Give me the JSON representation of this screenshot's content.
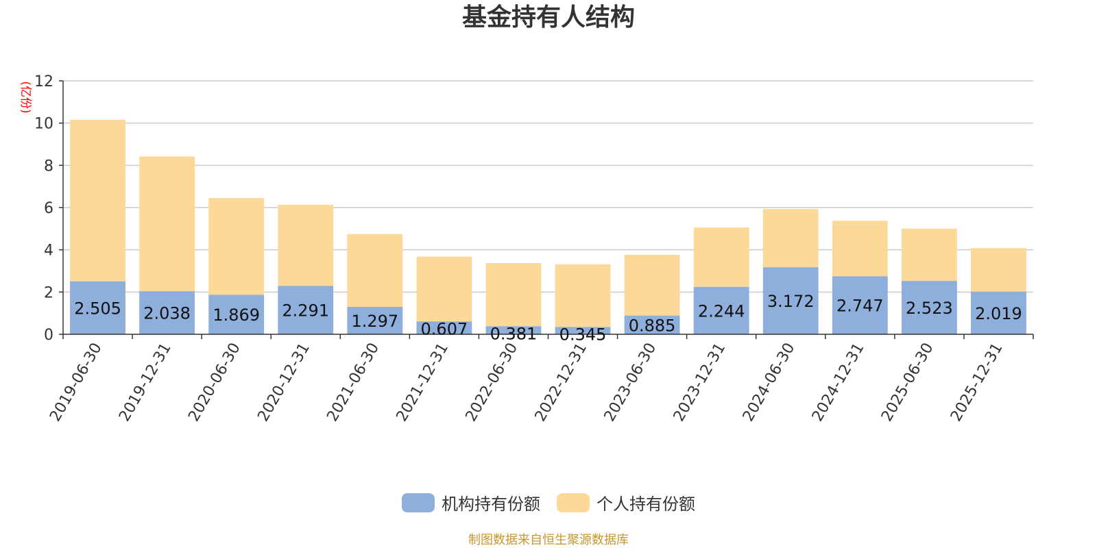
{
  "chart_data": {
    "type": "bar",
    "stacked": true,
    "title": "基金持有人结构",
    "ylabel": "(亿份)",
    "xlabel": "",
    "ylim": [
      0,
      12
    ],
    "yticks": [
      0,
      2,
      4,
      6,
      8,
      10,
      12
    ],
    "grid": true,
    "legend_position": "bottom",
    "categories": [
      "2019-06-30",
      "2019-12-31",
      "2020-06-30",
      "2020-12-31",
      "2021-06-30",
      "2021-12-31",
      "2022-06-30",
      "2022-12-31",
      "2023-06-30",
      "2023-12-31",
      "2024-06-30",
      "2024-12-31",
      "2025-06-30",
      "2025-12-31"
    ],
    "series": [
      {
        "name": "机构持有份额",
        "color": "#8eaedc",
        "values": [
          2.505,
          2.038,
          1.869,
          2.291,
          1.297,
          0.607,
          0.381,
          0.345,
          0.885,
          2.244,
          3.172,
          2.747,
          2.523,
          2.019
        ],
        "labels": [
          "2.505",
          "2.038",
          "1.869",
          "2.291",
          "1.297",
          "0.607",
          "0.381",
          "0.345",
          "0.885",
          "2.244",
          "3.172",
          "2.747",
          "2.523",
          "2.019"
        ]
      },
      {
        "name": "个人持有份额",
        "color": "#fdd999",
        "values": [
          7.65,
          6.38,
          4.58,
          3.84,
          3.45,
          3.07,
          2.99,
          2.97,
          2.88,
          2.81,
          2.76,
          2.63,
          2.48,
          2.06
        ]
      }
    ]
  },
  "footer": {
    "source": "制图数据来自恒生聚源数据库"
  }
}
